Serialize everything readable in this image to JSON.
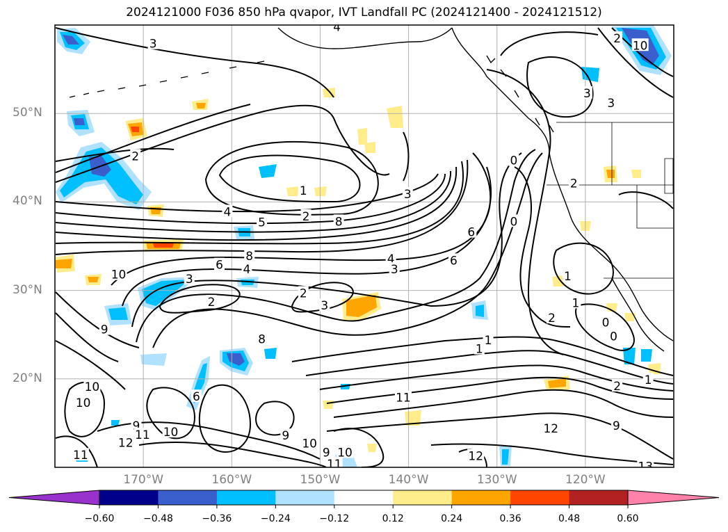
{
  "title": "2024121000 F036 850 hPa qvapor, IVT Landfall PC (2024121400 - 2024121512)",
  "map": {
    "lat_labels": [
      "50°N",
      "40°N",
      "30°N",
      "20°N"
    ],
    "lat_values": [
      50,
      40,
      30,
      20
    ],
    "lon_labels": [
      "170°W",
      "160°W",
      "150°W",
      "140°W",
      "130°W",
      "120°W"
    ],
    "lon_values": [
      -170,
      -160,
      -150,
      -140,
      -130,
      -120
    ],
    "extent": {
      "lon_min": -180,
      "lon_max": -110,
      "lat_min": 10,
      "lat_max": 60
    },
    "contour_labels": [
      {
        "text": "3",
        "lon": -168.9,
        "lat": 57.9
      },
      {
        "text": "4",
        "lon": -148.1,
        "lat": 59.8
      },
      {
        "text": "2",
        "lon": -116.4,
        "lat": 58.5
      },
      {
        "text": "10",
        "lon": -113.8,
        "lat": 57.7
      },
      {
        "text": "3",
        "lon": -119.8,
        "lat": 52.3
      },
      {
        "text": "3",
        "lon": -117.1,
        "lat": 51.2
      },
      {
        "text": "2",
        "lon": -170.9,
        "lat": 45.2
      },
      {
        "text": "1",
        "lon": -151.9,
        "lat": 41.3
      },
      {
        "text": "3",
        "lon": -140.1,
        "lat": 40.9
      },
      {
        "text": "0",
        "lon": -128.1,
        "lat": 44.7
      },
      {
        "text": "2",
        "lon": -121.3,
        "lat": 42.1
      },
      {
        "text": "4",
        "lon": -160.5,
        "lat": 38.9
      },
      {
        "text": "2",
        "lon": -151.6,
        "lat": 38.4
      },
      {
        "text": "5",
        "lon": -156.6,
        "lat": 37.7
      },
      {
        "text": "8",
        "lon": -147.9,
        "lat": 37.8
      },
      {
        "text": "6",
        "lon": -132.9,
        "lat": 36.6
      },
      {
        "text": "0",
        "lon": -128.1,
        "lat": 37.8
      },
      {
        "text": "8",
        "lon": -158.0,
        "lat": 33.9
      },
      {
        "text": "6",
        "lon": -161.4,
        "lat": 32.9
      },
      {
        "text": "4",
        "lon": -158.3,
        "lat": 32.4
      },
      {
        "text": "4",
        "lon": -142.0,
        "lat": 33.6
      },
      {
        "text": "3",
        "lon": -141.6,
        "lat": 32.4
      },
      {
        "text": "6",
        "lon": -134.9,
        "lat": 33.4
      },
      {
        "text": "3",
        "lon": -164.8,
        "lat": 31.3
      },
      {
        "text": "10",
        "lon": -172.8,
        "lat": 31.8
      },
      {
        "text": "1",
        "lon": -122.0,
        "lat": 31.6
      },
      {
        "text": "2",
        "lon": -151.9,
        "lat": 29.7
      },
      {
        "text": "2",
        "lon": -162.3,
        "lat": 28.7
      },
      {
        "text": "3",
        "lon": -149.5,
        "lat": 28.3
      },
      {
        "text": "1",
        "lon": -121.1,
        "lat": 28.6
      },
      {
        "text": "2",
        "lon": -123.8,
        "lat": 26.9
      },
      {
        "text": "0",
        "lon": -117.7,
        "lat": 26.4
      },
      {
        "text": "0",
        "lon": -116.8,
        "lat": 24.8
      },
      {
        "text": "9",
        "lon": -174.4,
        "lat": 25.6
      },
      {
        "text": "8",
        "lon": -156.6,
        "lat": 24.5
      },
      {
        "text": "1",
        "lon": -132.0,
        "lat": 23.4
      },
      {
        "text": "1",
        "lon": -131.0,
        "lat": 24.4
      },
      {
        "text": "1",
        "lon": -112.9,
        "lat": 19.9
      },
      {
        "text": "2",
        "lon": -116.4,
        "lat": 19.2
      },
      {
        "text": "10",
        "lon": -175.8,
        "lat": 19.1
      },
      {
        "text": "10",
        "lon": -176.8,
        "lat": 17.3
      },
      {
        "text": "11",
        "lon": -140.6,
        "lat": 17.9
      },
      {
        "text": "6",
        "lon": -164.0,
        "lat": 18.0
      },
      {
        "text": "9",
        "lon": -170.8,
        "lat": 14.7
      },
      {
        "text": "10",
        "lon": -166.9,
        "lat": 14.0
      },
      {
        "text": "9",
        "lon": -153.9,
        "lat": 13.6
      },
      {
        "text": "12",
        "lon": -123.9,
        "lat": 14.4
      },
      {
        "text": "9",
        "lon": -116.5,
        "lat": 14.7
      },
      {
        "text": "11",
        "lon": -170.1,
        "lat": 13.7
      },
      {
        "text": "12",
        "lon": -172.0,
        "lat": 12.8
      },
      {
        "text": "10",
        "lon": -151.2,
        "lat": 12.7
      },
      {
        "text": "10",
        "lon": -147.2,
        "lat": 11.7
      },
      {
        "text": "9",
        "lon": -149.3,
        "lat": 11.7
      },
      {
        "text": "11",
        "lon": -177.1,
        "lat": 11.4
      },
      {
        "text": "11",
        "lon": -148.4,
        "lat": 10.4
      },
      {
        "text": "12",
        "lon": -132.4,
        "lat": 11.3
      },
      {
        "text": "13",
        "lon": -113.2,
        "lat": 10.1
      }
    ]
  },
  "colorbar": {
    "ticks": [
      "−0.60",
      "−0.48",
      "−0.36",
      "−0.24",
      "−0.12",
      "0.12",
      "0.24",
      "0.36",
      "0.48",
      "0.60"
    ],
    "colors": [
      "#9932cc",
      "#00008b",
      "#3a5fcd",
      "#00bfff",
      "#b0e2ff",
      "#ffffff",
      "#ffec8b",
      "#ffa500",
      "#ff4500",
      "#b22222",
      "#ff82ab",
      "#ff82ab"
    ]
  }
}
